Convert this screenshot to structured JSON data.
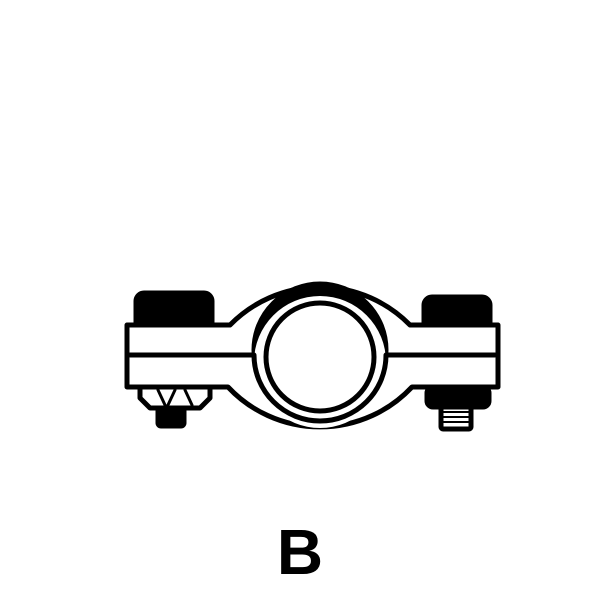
{
  "caption": "B",
  "colors": {
    "ink": "#000000",
    "paper": "#ffffff"
  },
  "icons": {
    "assembly": "pipe-clamp-icon",
    "left_fastener": "bolt-with-hex-nut-icon",
    "right_fastener": "threaded-bolt-with-nut-icon"
  }
}
